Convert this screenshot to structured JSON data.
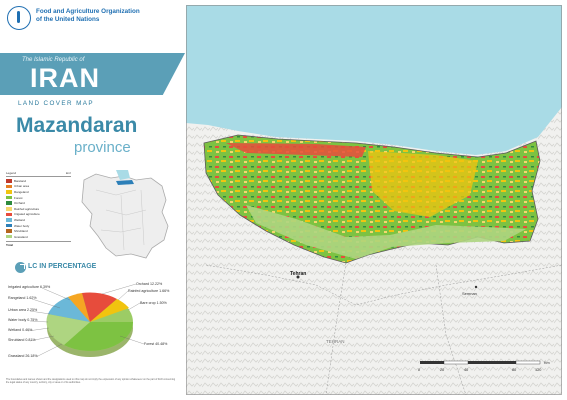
{
  "header": {
    "org_line1": "Food and Agriculture Organization",
    "org_line2": "of the United Nations",
    "country_pre": "The Islamic Republic of",
    "country": "IRAN",
    "map_type": "LAND COVER MAP",
    "province_name": "Mazandaran",
    "province_word": "province"
  },
  "legend": {
    "col_label": "Legend",
    "col_value": "km²",
    "items": [
      {
        "label": "Bareland",
        "value": "",
        "color": "#c0392b"
      },
      {
        "label": "Urban area",
        "value": "",
        "color": "#e67e22"
      },
      {
        "label": "Rangeland",
        "value": "",
        "color": "#f1c40f"
      },
      {
        "label": "Forest",
        "value": "",
        "color": "#7dc242"
      },
      {
        "label": "Orchard",
        "value": "",
        "color": "#2e8b3e"
      },
      {
        "label": "Rainfed agriculture",
        "value": "",
        "color": "#f5d76e"
      },
      {
        "label": "Irrigated agriculture",
        "value": "",
        "color": "#e74c3c"
      },
      {
        "label": "Wetland",
        "value": "",
        "color": "#6bb8d8"
      },
      {
        "label": "Water body",
        "value": "",
        "color": "#2c7fb8"
      },
      {
        "label": "Shrubland",
        "value": "",
        "color": "#b5651d"
      },
      {
        "label": "Grassland",
        "value": "",
        "color": "#aed581"
      }
    ],
    "total_label": "Total",
    "total_value": ""
  },
  "lc_percentage": {
    "heading": "LC IN PERCENTAGE",
    "labels": [
      {
        "text": "Irrigated agriculture 6.39%"
      },
      {
        "text": "Rangeland 1.62%"
      },
      {
        "text": "Urban area 2.25%"
      },
      {
        "text": "Water body 0.75%"
      },
      {
        "text": "Wetland 0.46%"
      },
      {
        "text": "Shrubland 0.81%"
      },
      {
        "text": "Grassland 26.18%"
      },
      {
        "text": "Orchard 12.22%"
      },
      {
        "text": "Rainfed agriculture 1.66%"
      },
      {
        "text": "Bare crop 1.50%"
      },
      {
        "text": "Forest 40.48%"
      }
    ]
  },
  "map": {
    "caspian_label": "",
    "city_tehran": "Tehran",
    "city_semnan": "Semnan",
    "region_tehran": "TEHRAN",
    "scale_labels": [
      "0",
      "20",
      "40",
      "80",
      "120"
    ],
    "scale_unit": "Km"
  },
  "footer": {
    "note": "The boundaries and names shown and the designations used on this map do not imply the expression of any opinion whatsoever on the part of FAO concerning the legal status of any country, territory, city or area or of its authorities."
  },
  "colors": {
    "band": "#5b9fb7",
    "sea": "#a9dbe6",
    "forest": "#7dc242",
    "agri": "#e74c3c"
  }
}
